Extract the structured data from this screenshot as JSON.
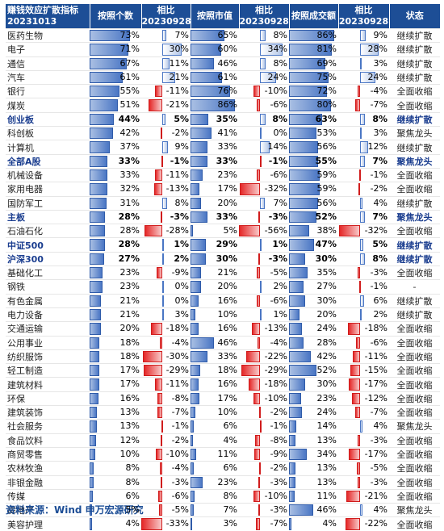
{
  "headers": [
    "赚钱效应扩散指标\n20231013",
    "按照个数",
    "相比\n20230928",
    "按照市值",
    "相比\n20230928",
    "按照成交额",
    "相比\n20230928",
    "状态"
  ],
  "rows": [
    {
      "name": "医药生物",
      "v1": 73,
      "d1": 7,
      "v2": 65,
      "d2": 8,
      "v3": 86,
      "d3": 9,
      "status": "继续扩散",
      "bold": false
    },
    {
      "name": "电子",
      "v1": 71,
      "d1": 30,
      "v2": 60,
      "d2": 34,
      "v3": 81,
      "d3": 28,
      "status": "继续扩散",
      "bold": false
    },
    {
      "name": "通信",
      "v1": 67,
      "d1": 11,
      "v2": 46,
      "d2": 8,
      "v3": 69,
      "d3": 3,
      "status": "继续扩散",
      "bold": false
    },
    {
      "name": "汽车",
      "v1": 61,
      "d1": 21,
      "v2": 61,
      "d2": 24,
      "v3": 75,
      "d3": 24,
      "status": "继续扩散",
      "bold": false
    },
    {
      "name": "银行",
      "v1": 55,
      "d1": -11,
      "v2": 76,
      "d2": -10,
      "v3": 72,
      "d3": -4,
      "status": "全面收缩",
      "bold": false
    },
    {
      "name": "煤炭",
      "v1": 51,
      "d1": -21,
      "v2": 86,
      "d2": -6,
      "v3": 80,
      "d3": -7,
      "status": "全面收缩",
      "bold": false
    },
    {
      "name": "创业板",
      "v1": 44,
      "d1": 5,
      "v2": 35,
      "d2": 8,
      "v3": 63,
      "d3": 8,
      "status": "继续扩散",
      "bold": true
    },
    {
      "name": "科创板",
      "v1": 42,
      "d1": -2,
      "v2": 41,
      "d2": 0,
      "v3": 53,
      "d3": 3,
      "status": "聚焦龙头",
      "bold": false
    },
    {
      "name": "计算机",
      "v1": 37,
      "d1": 9,
      "v2": 33,
      "d2": 14,
      "v3": 56,
      "d3": 12,
      "status": "继续扩散",
      "bold": false
    },
    {
      "name": "全部A股",
      "v1": 33,
      "d1": -1,
      "v2": 33,
      "d2": -1,
      "v3": 55,
      "d3": 7,
      "status": "聚焦龙头",
      "bold": true
    },
    {
      "name": "机械设备",
      "v1": 33,
      "d1": -11,
      "v2": 23,
      "d2": -6,
      "v3": 59,
      "d3": -1,
      "status": "全面收缩",
      "bold": false
    },
    {
      "name": "家用电器",
      "v1": 32,
      "d1": -13,
      "v2": 17,
      "d2": -32,
      "v3": 59,
      "d3": -2,
      "status": "全面收缩",
      "bold": false
    },
    {
      "name": "国防军工",
      "v1": 31,
      "d1": 8,
      "v2": 20,
      "d2": 7,
      "v3": 56,
      "d3": 4,
      "status": "继续扩散",
      "bold": false
    },
    {
      "name": "主板",
      "v1": 28,
      "d1": -3,
      "v2": 33,
      "d2": -3,
      "v3": 52,
      "d3": 7,
      "status": "聚焦龙头",
      "bold": true
    },
    {
      "name": "石油石化",
      "v1": 28,
      "d1": -28,
      "v2": 5,
      "d2": -56,
      "v3": 38,
      "d3": -32,
      "status": "全面收缩",
      "bold": false
    },
    {
      "name": "中证500",
      "v1": 28,
      "d1": 1,
      "v2": 29,
      "d2": 1,
      "v3": 47,
      "d3": 5,
      "status": "继续扩散",
      "bold": true
    },
    {
      "name": "沪深300",
      "v1": 27,
      "d1": 2,
      "v2": 30,
      "d2": -3,
      "v3": 30,
      "d3": 8,
      "status": "继续扩散",
      "bold": true
    },
    {
      "name": "基础化工",
      "v1": 23,
      "d1": -9,
      "v2": 21,
      "d2": -5,
      "v3": 35,
      "d3": -3,
      "status": "全面收缩",
      "bold": false
    },
    {
      "name": "钢铁",
      "v1": 23,
      "d1": 0,
      "v2": 20,
      "d2": 2,
      "v3": 27,
      "d3": -1,
      "status": "-",
      "bold": false
    },
    {
      "name": "有色金属",
      "v1": 21,
      "d1": 0,
      "v2": 16,
      "d2": -6,
      "v3": 30,
      "d3": 6,
      "status": "继续扩散",
      "bold": false
    },
    {
      "name": "电力设备",
      "v1": 21,
      "d1": 3,
      "v2": 10,
      "d2": 1,
      "v3": 20,
      "d3": 2,
      "status": "继续扩散",
      "bold": false
    },
    {
      "name": "交通运输",
      "v1": 20,
      "d1": -18,
      "v2": 16,
      "d2": -13,
      "v3": 24,
      "d3": -18,
      "status": "全面收缩",
      "bold": false
    },
    {
      "name": "公用事业",
      "v1": 18,
      "d1": -4,
      "v2": 46,
      "d2": -4,
      "v3": 28,
      "d3": -6,
      "status": "全面收缩",
      "bold": false
    },
    {
      "name": "纺织服饰",
      "v1": 18,
      "d1": -30,
      "v2": 33,
      "d2": -22,
      "v3": 42,
      "d3": -11,
      "status": "全面收缩",
      "bold": false
    },
    {
      "name": "轻工制造",
      "v1": 17,
      "d1": -29,
      "v2": 18,
      "d2": -29,
      "v3": 52,
      "d3": -15,
      "status": "全面收缩",
      "bold": false
    },
    {
      "name": "建筑材料",
      "v1": 17,
      "d1": -11,
      "v2": 16,
      "d2": -18,
      "v3": 30,
      "d3": -17,
      "status": "全面收缩",
      "bold": false
    },
    {
      "name": "环保",
      "v1": 16,
      "d1": -8,
      "v2": 17,
      "d2": -10,
      "v3": 23,
      "d3": -12,
      "status": "全面收缩",
      "bold": false
    },
    {
      "name": "建筑装饰",
      "v1": 13,
      "d1": -7,
      "v2": 10,
      "d2": -2,
      "v3": 24,
      "d3": -7,
      "status": "全面收缩",
      "bold": false
    },
    {
      "name": "社会服务",
      "v1": 13,
      "d1": -1,
      "v2": 6,
      "d2": -1,
      "v3": 14,
      "d3": 4,
      "status": "聚焦龙头",
      "bold": false
    },
    {
      "name": "食品饮料",
      "v1": 12,
      "d1": -2,
      "v2": 4,
      "d2": -8,
      "v3": 13,
      "d3": -3,
      "status": "全面收缩",
      "bold": false
    },
    {
      "name": "商贸零售",
      "v1": 10,
      "d1": -10,
      "v2": 11,
      "d2": -9,
      "v3": 34,
      "d3": -17,
      "status": "全面收缩",
      "bold": false
    },
    {
      "name": "农林牧渔",
      "v1": 8,
      "d1": -4,
      "v2": 6,
      "d2": -2,
      "v3": 13,
      "d3": -5,
      "status": "全面收缩",
      "bold": false
    },
    {
      "name": "非银金融",
      "v1": 8,
      "d1": -3,
      "v2": 23,
      "d2": -3,
      "v3": 13,
      "d3": -3,
      "status": "全面收缩",
      "bold": false
    },
    {
      "name": "传媒",
      "v1": 6,
      "d1": -6,
      "v2": 8,
      "d2": -10,
      "v3": 11,
      "d3": -21,
      "status": "全面收缩",
      "bold": false
    },
    {
      "name": "房地产",
      "v1": 5,
      "d1": -5,
      "v2": 7,
      "d2": -3,
      "v3": 46,
      "d3": 4,
      "status": "聚焦龙头",
      "bold": false
    },
    {
      "name": "美容护理",
      "v1": 4,
      "d1": -33,
      "v2": 3,
      "d2": -7,
      "v3": 4,
      "d3": -22,
      "status": "全面收缩",
      "bold": false
    }
  ],
  "footer": "资料来源：Wind  申万宏源研究"
}
